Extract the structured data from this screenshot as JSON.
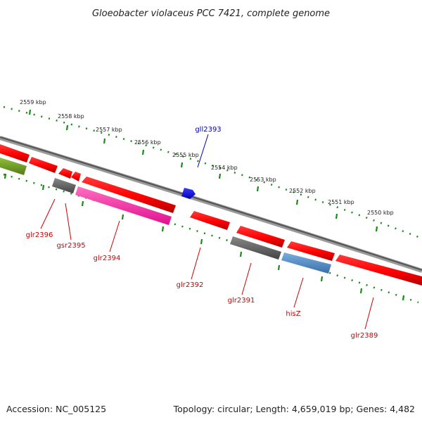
{
  "title": "Gloeobacter violaceus PCC 7421, complete genome",
  "scale_ticks": [
    "2559 kbp",
    "2558 kbp",
    "2557 kbp",
    "2556 kbp",
    "2555 kbp",
    "2554 kbp",
    "2553 kbp",
    "2552 kbp",
    "2551 kbp",
    "2550 kbp"
  ],
  "genes": {
    "gll2393": "gll2393",
    "glr2396": "glr2396",
    "gsr2395": "gsr2395",
    "glr2394": "glr2394",
    "glr2392": "glr2392",
    "glr2391": "glr2391",
    "hisZ": "hisZ",
    "glr2389": "glr2389"
  },
  "footer": {
    "accession": "Accession: NC_005125",
    "summary": "Topology: circular; Length: 4,659,019 bp; Genes: 4,482"
  },
  "colors": {
    "red_gene": "#ff0000",
    "pink_gene": "#ff2ea0",
    "blue_gene": "#0000ff",
    "gray_gene": "#666666",
    "steelblue_gene": "#4f86c0",
    "olive_gene": "#6f9a2a",
    "backbone": "#777777",
    "ticks": "#1a8a1a",
    "red_label": "#cc0000",
    "blue_label": "#0000aa"
  }
}
